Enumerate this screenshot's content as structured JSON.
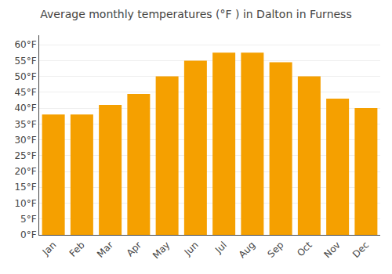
{
  "chart_data": {
    "type": "bar",
    "title": "Average monthly temperatures (°F ) in Dalton in Furness",
    "categories": [
      "Jan",
      "Feb",
      "Mar",
      "Apr",
      "May",
      "Jun",
      "Jul",
      "Aug",
      "Sep",
      "Oct",
      "Nov",
      "Dec"
    ],
    "values": [
      38,
      38,
      41,
      44.5,
      50,
      55,
      57.5,
      57.5,
      54.5,
      50,
      43,
      40
    ],
    "color": "#F5A000",
    "ylim": [
      0,
      63
    ],
    "yticks": [
      {
        "value": 0,
        "label": "0°F"
      },
      {
        "value": 5,
        "label": "5°F"
      },
      {
        "value": 10,
        "label": "10°F"
      },
      {
        "value": 15,
        "label": "15°F"
      },
      {
        "value": 20,
        "label": "20°F"
      },
      {
        "value": 25,
        "label": "25°F"
      },
      {
        "value": 30,
        "label": "30°F"
      },
      {
        "value": 35,
        "label": "35°F"
      },
      {
        "value": 40,
        "label": "40°F"
      },
      {
        "value": 45,
        "label": "45°F"
      },
      {
        "value": 50,
        "label": "50°F"
      },
      {
        "value": 55,
        "label": "55°F"
      },
      {
        "value": 60,
        "label": "60°F"
      }
    ],
    "grid": true
  }
}
